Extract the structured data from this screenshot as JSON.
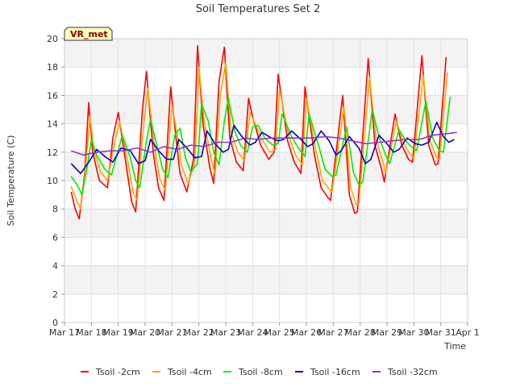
{
  "chart_data": {
    "type": "line",
    "title": "Soil Temperatures Set 2",
    "xlabel": "Time",
    "ylabel": "Soil Temperature (C)",
    "station_label": "VR_met",
    "ylim": [
      0,
      20
    ],
    "yticks": [
      0,
      2,
      4,
      6,
      8,
      10,
      12,
      14,
      16,
      18,
      20
    ],
    "xlim": [
      0,
      15
    ],
    "xticks": [
      {
        "x": 0,
        "label": "Mar 17"
      },
      {
        "x": 1,
        "label": "Mar 18"
      },
      {
        "x": 2,
        "label": "Mar 19"
      },
      {
        "x": 3,
        "label": "Mar 20"
      },
      {
        "x": 4,
        "label": "Mar 21"
      },
      {
        "x": 5,
        "label": "Mar 22"
      },
      {
        "x": 6,
        "label": "Mar 23"
      },
      {
        "x": 7,
        "label": "Mar 24"
      },
      {
        "x": 8,
        "label": "Mar 25"
      },
      {
        "x": 9,
        "label": "Mar 26"
      },
      {
        "x": 10,
        "label": "Mar 27"
      },
      {
        "x": 11,
        "label": "Mar 28"
      },
      {
        "x": 12,
        "label": "Mar 29"
      },
      {
        "x": 13,
        "label": "Mar 30"
      },
      {
        "x": 14,
        "label": "Mar 31"
      },
      {
        "x": 15,
        "label": "Apr 1"
      }
    ],
    "grid": true,
    "background_bands": true,
    "legend_position": "bottom",
    "series": [
      {
        "name": "Tsoil -2cm",
        "color": "#ff0000",
        "x": [
          0.25,
          0.4,
          0.55,
          0.75,
          0.9,
          1.05,
          1.3,
          1.6,
          1.8,
          2.0,
          2.3,
          2.5,
          2.65,
          2.9,
          3.05,
          3.3,
          3.5,
          3.7,
          3.95,
          4.15,
          4.3,
          4.55,
          4.8,
          4.95,
          5.15,
          5.4,
          5.55,
          5.75,
          5.95,
          6.15,
          6.4,
          6.65,
          6.85,
          7.0,
          7.3,
          7.6,
          7.8,
          7.95,
          8.3,
          8.55,
          8.8,
          8.95,
          9.3,
          9.55,
          9.8,
          9.9,
          10.35,
          10.6,
          10.8,
          10.9,
          11.3,
          11.55,
          11.8,
          11.9,
          12.3,
          12.55,
          12.8,
          12.95,
          13.3,
          13.55,
          13.8,
          13.9,
          14.2
        ],
        "y": [
          9.2,
          8.0,
          7.3,
          10.5,
          15.5,
          12.0,
          10.0,
          9.5,
          13.0,
          14.8,
          11.0,
          8.5,
          7.8,
          15.0,
          17.7,
          12.0,
          9.5,
          8.6,
          16.6,
          13.0,
          10.5,
          9.2,
          11.5,
          19.5,
          14.0,
          11.0,
          9.8,
          17.0,
          19.4,
          13.0,
          11.3,
          10.7,
          15.8,
          14.5,
          12.5,
          11.5,
          12.0,
          17.5,
          12.8,
          11.3,
          10.5,
          16.6,
          11.8,
          9.5,
          8.8,
          8.6,
          16.0,
          9.0,
          7.7,
          7.8,
          18.6,
          12.5,
          10.8,
          9.9,
          14.7,
          12.5,
          11.5,
          11.3,
          18.8,
          12.5,
          11.1,
          11.2,
          18.7
        ]
      },
      {
        "name": "Tsoil -4cm",
        "color": "#ffa500",
        "x": [
          0.25,
          0.45,
          0.6,
          0.75,
          0.95,
          1.1,
          1.35,
          1.6,
          1.85,
          2.05,
          2.35,
          2.55,
          2.7,
          2.95,
          3.1,
          3.35,
          3.55,
          3.75,
          4.0,
          4.2,
          4.35,
          4.6,
          4.85,
          5.0,
          5.2,
          5.45,
          5.6,
          5.8,
          6.0,
          6.2,
          6.45,
          6.7,
          6.9,
          7.05,
          7.35,
          7.65,
          7.85,
          8.0,
          8.35,
          8.6,
          8.85,
          9.0,
          9.35,
          9.6,
          9.85,
          9.95,
          10.4,
          10.65,
          10.85,
          10.95,
          11.35,
          11.6,
          11.85,
          11.95,
          12.35,
          12.6,
          12.85,
          13.0,
          13.35,
          13.6,
          13.85,
          13.95,
          14.25
        ],
        "y": [
          9.6,
          8.6,
          8.0,
          10.3,
          14.5,
          12.1,
          10.6,
          10.0,
          12.5,
          14.2,
          11.4,
          9.2,
          8.6,
          14.0,
          16.5,
          12.4,
          10.1,
          9.3,
          15.3,
          13.2,
          11.1,
          9.8,
          11.3,
          18.0,
          14.1,
          11.6,
          10.4,
          16.0,
          18.3,
          13.4,
          12.0,
          11.4,
          14.8,
          14.2,
          12.9,
          12.0,
          12.2,
          16.4,
          13.1,
          11.8,
          11.1,
          15.8,
          12.2,
          10.0,
          9.4,
          9.2,
          15.2,
          9.5,
          8.3,
          8.4,
          17.3,
          12.9,
          11.3,
          10.5,
          14.2,
          12.7,
          11.9,
          11.6,
          17.4,
          12.8,
          11.6,
          11.5,
          17.6
        ]
      },
      {
        "name": "Tsoil -8cm",
        "color": "#00ee00",
        "x": [
          0.25,
          0.5,
          0.65,
          0.85,
          1.0,
          1.2,
          1.5,
          1.75,
          1.95,
          2.15,
          2.45,
          2.65,
          2.8,
          3.05,
          3.2,
          3.45,
          3.65,
          3.85,
          4.1,
          4.3,
          4.5,
          4.7,
          4.95,
          5.1,
          5.35,
          5.55,
          5.75,
          5.95,
          6.1,
          6.35,
          6.55,
          6.8,
          7.0,
          7.2,
          7.45,
          7.75,
          7.95,
          8.1,
          8.45,
          8.7,
          8.95,
          9.1,
          9.45,
          9.7,
          9.95,
          10.1,
          10.5,
          10.75,
          10.95,
          11.1,
          11.45,
          11.7,
          11.95,
          12.1,
          12.45,
          12.7,
          12.95,
          13.1,
          13.45,
          13.7,
          13.95,
          14.1,
          14.35
        ],
        "y": [
          10.3,
          9.6,
          9.0,
          11.0,
          12.9,
          11.8,
          10.8,
          10.4,
          11.8,
          13.2,
          11.6,
          10.0,
          9.5,
          12.8,
          14.3,
          12.4,
          10.8,
          10.2,
          13.2,
          13.7,
          11.6,
          10.6,
          11.2,
          15.4,
          14.2,
          12.0,
          11.1,
          14.2,
          15.8,
          13.4,
          12.5,
          12.0,
          13.8,
          13.9,
          13.0,
          12.5,
          12.6,
          14.7,
          13.1,
          12.3,
          11.7,
          14.7,
          12.5,
          10.8,
          10.3,
          10.4,
          13.8,
          10.6,
          9.7,
          9.9,
          15.0,
          13.1,
          11.8,
          11.2,
          13.6,
          12.8,
          12.3,
          12.1,
          15.6,
          13.0,
          12.1,
          12.0,
          15.9
        ]
      },
      {
        "name": "Tsoil -16cm",
        "color": "#0000cc",
        "x": [
          0.25,
          0.6,
          0.9,
          1.2,
          1.5,
          1.8,
          2.1,
          2.45,
          2.75,
          3.0,
          3.2,
          3.5,
          3.8,
          4.05,
          4.25,
          4.55,
          4.85,
          5.1,
          5.3,
          5.6,
          5.9,
          6.1,
          6.3,
          6.6,
          6.9,
          7.1,
          7.35,
          7.7,
          7.95,
          8.15,
          8.45,
          8.8,
          9.05,
          9.25,
          9.55,
          9.85,
          10.1,
          10.3,
          10.6,
          10.95,
          11.2,
          11.4,
          11.7,
          12.0,
          12.25,
          12.45,
          12.75,
          13.05,
          13.3,
          13.55,
          13.85,
          14.1,
          14.3,
          14.5
        ],
        "y": [
          11.2,
          10.5,
          11.3,
          12.2,
          11.7,
          11.3,
          12.3,
          12.1,
          11.2,
          11.4,
          12.9,
          12.1,
          11.5,
          11.5,
          12.9,
          12.3,
          11.6,
          11.7,
          13.5,
          12.6,
          12.0,
          12.2,
          13.9,
          13.1,
          12.5,
          12.7,
          13.4,
          13.0,
          12.8,
          12.9,
          13.5,
          12.9,
          12.4,
          12.6,
          13.5,
          12.8,
          11.8,
          12.1,
          13.1,
          12.3,
          11.2,
          11.5,
          13.2,
          12.6,
          12.0,
          12.2,
          13.0,
          12.6,
          12.5,
          12.7,
          14.1,
          13.1,
          12.7,
          12.9
        ]
      },
      {
        "name": "Tsoil -32cm",
        "color": "#9932cc",
        "x": [
          0.25,
          0.7,
          1.2,
          1.7,
          2.2,
          2.7,
          3.2,
          3.7,
          4.2,
          4.7,
          5.2,
          5.7,
          6.2,
          6.7,
          7.2,
          7.7,
          8.2,
          8.7,
          9.2,
          9.7,
          10.2,
          10.7,
          11.2,
          11.7,
          12.2,
          12.7,
          13.2,
          13.7,
          14.2,
          14.6
        ],
        "y": [
          12.1,
          11.8,
          12.0,
          12.1,
          12.1,
          12.3,
          12.0,
          12.4,
          12.2,
          12.5,
          12.4,
          12.7,
          12.7,
          13.0,
          12.9,
          13.0,
          13.0,
          13.0,
          13.0,
          13.1,
          13.0,
          12.8,
          12.6,
          12.7,
          12.8,
          12.9,
          12.9,
          13.2,
          13.3,
          13.4
        ]
      }
    ]
  }
}
